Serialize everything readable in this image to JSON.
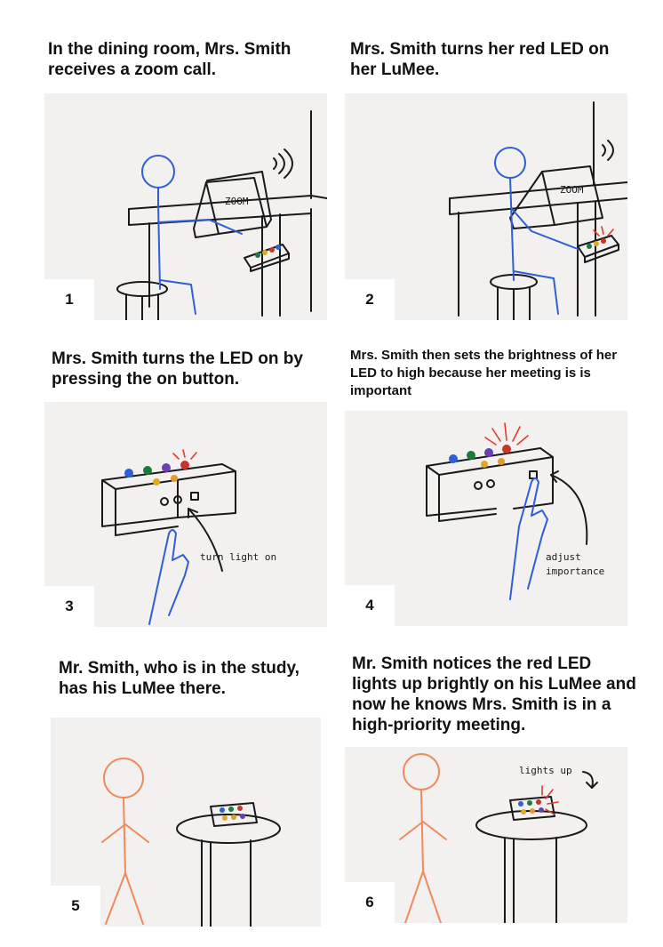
{
  "panels": [
    {
      "number": "1",
      "caption": "In the dining room, Mrs. Smith receives a zoom call.",
      "labels": [
        "ZOOM"
      ]
    },
    {
      "number": "2",
      "caption": "Mrs. Smith turns her red LED on her LuMee.",
      "labels": [
        "ZOOM"
      ]
    },
    {
      "number": "3",
      "caption": "Mrs. Smith turns the LED on by pressing the on button.",
      "labels": [
        "turn light on"
      ]
    },
    {
      "number": "4",
      "caption": "Mrs. Smith then sets the brightness of her LED to high because her meeting is is important",
      "labels": [
        "adjust",
        "importance"
      ]
    },
    {
      "number": "5",
      "caption": "Mr. Smith, who is in the study, has his LuMee there.",
      "labels": []
    },
    {
      "number": "6",
      "caption": "Mr. Smith notices the red LED lights up brightly on his LuMee and now he knows Mrs. Smith is in a high-priority meeting.",
      "labels": [
        "lights up"
      ]
    }
  ],
  "colors": {
    "ink": "#1a1a1a",
    "mrs_smith": "#2f5fd6",
    "mr_smith": "#f08a5a",
    "led_red": "#e23a2e"
  }
}
